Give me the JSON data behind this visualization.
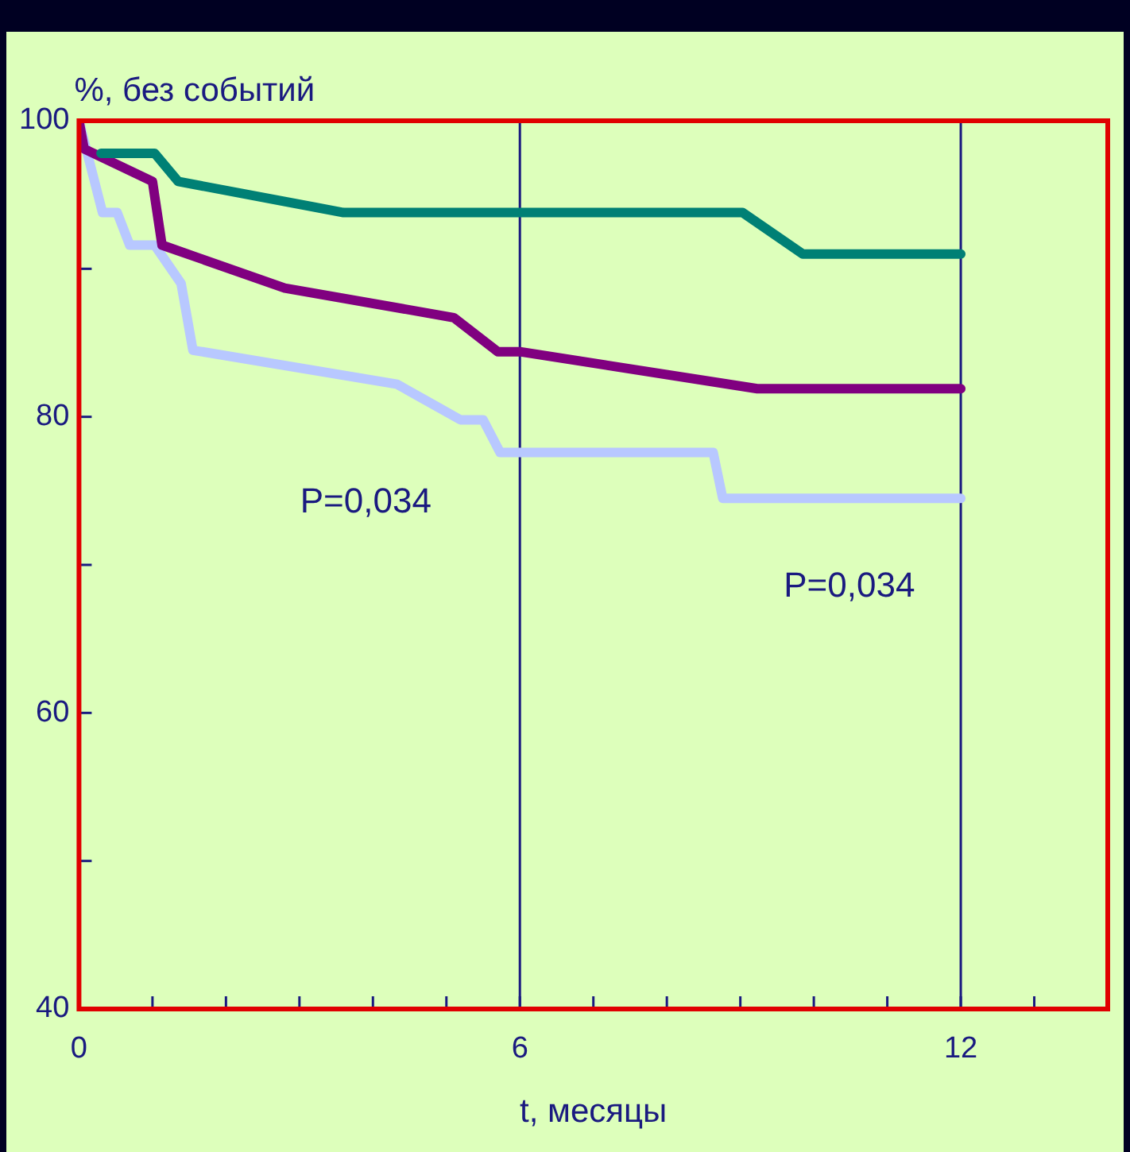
{
  "chart_data": {
    "type": "line",
    "xlabel": "t, месяцы",
    "ylabel": "%, без событий",
    "xlim": [
      0,
      14
    ],
    "ylim": [
      40,
      100
    ],
    "xticks": [
      0,
      {
        "value": 1,
        "label": null
      },
      {
        "value": 2,
        "label": null
      },
      {
        "value": 3,
        "label": null
      },
      {
        "value": 4,
        "label": null
      },
      {
        "value": 5,
        "label": null
      },
      6,
      {
        "value": 7,
        "label": null
      },
      {
        "value": 8,
        "label": null
      },
      {
        "value": 9,
        "label": null
      },
      {
        "value": 10,
        "label": null
      },
      {
        "value": 11,
        "label": null
      },
      12,
      {
        "value": 13,
        "label": null
      }
    ],
    "yticks": [
      40,
      {
        "value": 50,
        "label": null
      },
      60,
      {
        "value": 70,
        "label": null
      },
      80,
      {
        "value": 90,
        "label": null
      },
      100
    ],
    "grid": false,
    "legend": false,
    "marker": "none",
    "line_style": "solid",
    "ref_lines": [
      {
        "axis": "x",
        "value": 6,
        "color": "#1a1a80"
      },
      {
        "axis": "x",
        "value": 12,
        "color": "#1a1a80"
      }
    ],
    "annotations": [
      "P=0,034",
      "P=0,034"
    ],
    "series": [
      {
        "color": "#008075",
        "x": [
          0.3,
          1.03,
          1.35,
          3.6,
          9.03,
          9.85,
          12
        ],
        "values": [
          97.8,
          97.8,
          95.9,
          93.8,
          93.8,
          91.0,
          91.0
        ]
      },
      {
        "color": "#800080",
        "x": [
          0,
          0.07,
          1.0,
          1.13,
          2.8,
          5.1,
          5.7,
          6.0,
          9.23,
          12
        ],
        "values": [
          100,
          98.1,
          95.9,
          91.6,
          88.7,
          86.7,
          84.4,
          84.4,
          81.9,
          81.9
        ]
      },
      {
        "color": "#b8c8ff",
        "x": [
          0,
          0.32,
          0.52,
          0.69,
          1.03,
          1.39,
          1.55,
          4.33,
          5.19,
          5.5,
          5.73,
          8.63,
          8.76,
          12
        ],
        "values": [
          100,
          93.8,
          93.8,
          91.6,
          91.6,
          89.0,
          84.5,
          82.2,
          79.8,
          79.8,
          77.6,
          77.6,
          74.5,
          74.5
        ]
      }
    ]
  }
}
